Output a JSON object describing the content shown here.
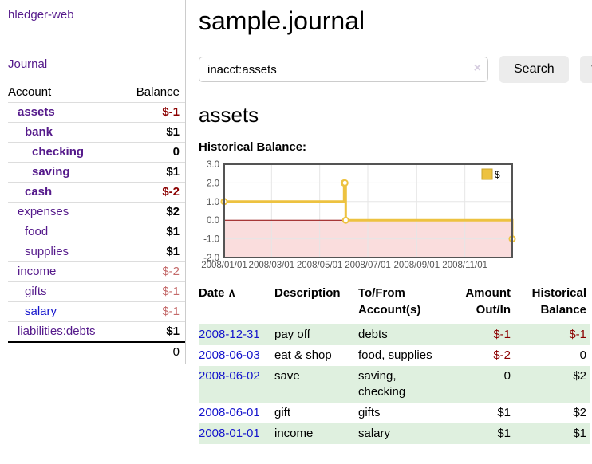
{
  "colors": {
    "link_purple": "#551a8b",
    "link_blue": "#1515cc",
    "negative_strong": "#8b0000",
    "negative_soft": "#c46a6a",
    "row_stripe_green": "#dff0df",
    "divider_gray": "#cccccc",
    "button_gray": "#ececec"
  },
  "sidebar": {
    "brand": "hledger-web",
    "nav": {
      "journal": "Journal"
    },
    "table": {
      "header": {
        "account": "Account",
        "balance": "Balance"
      },
      "rows": [
        {
          "name": "assets",
          "balance": "$-1",
          "indent": 1,
          "bold": true,
          "balance_class": "neg-strong"
        },
        {
          "name": "bank",
          "balance": "$1",
          "indent": 2,
          "bold": true,
          "balance_class": "pos"
        },
        {
          "name": "checking",
          "balance": "0",
          "indent": 3,
          "bold": true,
          "balance_class": "pos"
        },
        {
          "name": "saving",
          "balance": "$1",
          "indent": 3,
          "bold": true,
          "balance_class": "pos"
        },
        {
          "name": "cash",
          "balance": "$-2",
          "indent": 2,
          "bold": true,
          "balance_class": "neg-strong"
        },
        {
          "name": "expenses",
          "balance": "$2",
          "indent": 1,
          "bold": false,
          "balance_class": "pos"
        },
        {
          "name": "food",
          "balance": "$1",
          "indent": 2,
          "bold": false,
          "balance_class": "pos"
        },
        {
          "name": "supplies",
          "balance": "$1",
          "indent": 2,
          "bold": false,
          "balance_class": "pos"
        },
        {
          "name": "income",
          "balance": "$-2",
          "indent": 1,
          "bold": false,
          "balance_class": "neg-soft"
        },
        {
          "name": "gifts",
          "balance": "$-1",
          "indent": 2,
          "bold": false,
          "balance_class": "neg-soft"
        },
        {
          "name": "salary",
          "balance": "$-1",
          "indent": 2,
          "bold": false,
          "balance_class": "neg-soft",
          "link_color": "blue"
        },
        {
          "name": "liabilities:debts",
          "balance": "$1",
          "indent": 1,
          "bold": false,
          "balance_class": "pos"
        }
      ],
      "total": "0"
    }
  },
  "main": {
    "title": "sample.journal",
    "search": {
      "value": "inacct:assets",
      "clear_icon": "×",
      "search_button": "Search",
      "help_button": "?"
    },
    "account_heading": "assets",
    "chart_heading": "Historical Balance:"
  },
  "chart_data": {
    "type": "line",
    "title": "Historical Balance",
    "step": true,
    "legend": {
      "label": "$",
      "position": "top-right"
    },
    "series": [
      {
        "name": "$",
        "color": "#edc240",
        "points": [
          [
            "2008-01-01",
            1
          ],
          [
            "2008-06-01",
            2
          ],
          [
            "2008-06-02",
            2
          ],
          [
            "2008-06-03",
            0
          ],
          [
            "2008-12-31",
            -1
          ]
        ]
      }
    ],
    "xrange": [
      "2008-01-01",
      "2008-12-31"
    ],
    "ylim": [
      -2,
      3
    ],
    "yticks": [
      3.0,
      2.0,
      1.0,
      0.0,
      -1.0,
      -2.0
    ],
    "xticks": [
      {
        "t": "2008-01-01",
        "label": "2008/01/01"
      },
      {
        "t": "2008-03-01",
        "label": "2008/03/01"
      },
      {
        "t": "2008-05-01",
        "label": "2008/05/01"
      },
      {
        "t": "2008-07-01",
        "label": "2008/07/01"
      },
      {
        "t": "2008-09-01",
        "label": "2008/09/01"
      },
      {
        "t": "2008-11-01",
        "label": "2008/11/01"
      }
    ],
    "grid": true,
    "negative_fill": "#fadddd",
    "zero_line_color": "#8b0000",
    "border_color": "#545454",
    "grid_color": "#e6e6e6",
    "tick_color": "#545454"
  },
  "register": {
    "columns": {
      "date": "Date",
      "description": "Description",
      "accounts": "To/From Account(s)",
      "amount": "Amount Out/In",
      "balance": "Historical Balance"
    },
    "sort_icon": "∧",
    "rows": [
      {
        "date": "2008-12-31",
        "description": "pay off",
        "accounts": "debts",
        "amount": "$-1",
        "balance": "$-1",
        "amount_neg": true,
        "balance_neg": true
      },
      {
        "date": "2008-06-03",
        "description": "eat & shop",
        "accounts": "food, supplies",
        "amount": "$-2",
        "balance": "0",
        "amount_neg": true,
        "balance_neg": false
      },
      {
        "date": "2008-06-02",
        "description": "save",
        "accounts": "saving, checking",
        "amount": "0",
        "balance": "$2",
        "amount_neg": false,
        "balance_neg": false
      },
      {
        "date": "2008-06-01",
        "description": "gift",
        "accounts": "gifts",
        "amount": "$1",
        "balance": "$2",
        "amount_neg": false,
        "balance_neg": false
      },
      {
        "date": "2008-01-01",
        "description": "income",
        "accounts": "salary",
        "amount": "$1",
        "balance": "$1",
        "amount_neg": false,
        "balance_neg": false
      }
    ]
  }
}
